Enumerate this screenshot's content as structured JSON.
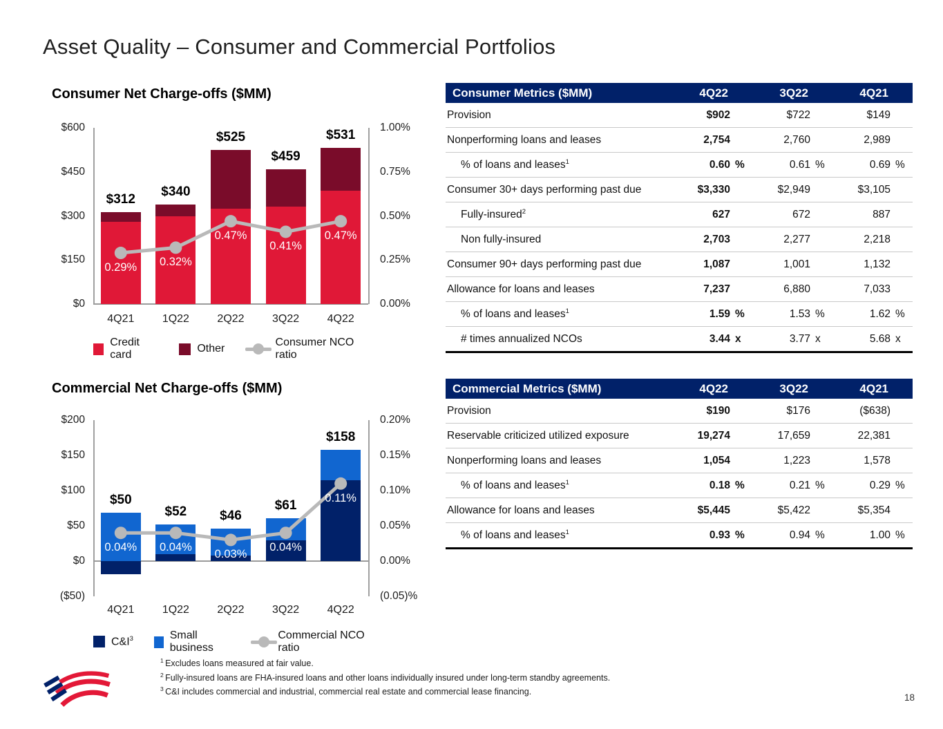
{
  "page": {
    "title": "Asset Quality – Consumer and Commercial Portfolios",
    "page_number": "18"
  },
  "chart_data": [
    {
      "id": "consumer",
      "type": "stacked-bar+line",
      "title": "Consumer Net Charge-offs ($MM)",
      "categories": [
        "4Q21",
        "1Q22",
        "2Q22",
        "3Q22",
        "4Q22"
      ],
      "series": [
        {
          "name": "Credit card",
          "color": "#e01837",
          "values": [
            281,
            300,
            324,
            331,
            387
          ]
        },
        {
          "name": "Other",
          "color": "#7a0c2a",
          "values": [
            31,
            40,
            201,
            128,
            144
          ]
        }
      ],
      "total_labels": [
        "$312",
        "$340",
        "$525",
        "$459",
        "$531"
      ],
      "line": {
        "name": "Consumer NCO ratio",
        "color": "#b9b9b9",
        "values": [
          0.29,
          0.32,
          0.47,
          0.41,
          0.47
        ],
        "labels": [
          "0.29%",
          "0.32%",
          "0.47%",
          "0.41%",
          "0.47%"
        ]
      },
      "left_axis": {
        "min": 0,
        "max": 600,
        "ticks": [
          "$600",
          "$450",
          "$300",
          "$150",
          "$0"
        ]
      },
      "right_axis": {
        "min": 0,
        "max": 1.0,
        "ticks": [
          "1.00%",
          "0.75%",
          "0.50%",
          "0.25%",
          "0.00%"
        ]
      },
      "legend": [
        {
          "type": "swatch",
          "color": "#e01837",
          "label": "Credit card"
        },
        {
          "type": "swatch",
          "color": "#7a0c2a",
          "label": "Other"
        },
        {
          "type": "line",
          "label": "Consumer NCO ratio"
        }
      ]
    },
    {
      "id": "commercial",
      "type": "stacked-bar+line",
      "title": "Commercial Net Charge-offs ($MM)",
      "categories": [
        "4Q21",
        "1Q22",
        "2Q22",
        "3Q22",
        "4Q22"
      ],
      "series": [
        {
          "name": "C&I",
          "color": "#012169",
          "values": [
            -19,
            10,
            8,
            29,
            115
          ]
        },
        {
          "name": "Small business",
          "color": "#1166d0",
          "values": [
            69,
            42,
            38,
            32,
            43
          ]
        }
      ],
      "total_labels": [
        "$50",
        "$52",
        "$46",
        "$61",
        "$158"
      ],
      "line": {
        "name": "Commercial NCO ratio",
        "color": "#b9b9b9",
        "values": [
          0.04,
          0.04,
          0.03,
          0.04,
          0.11
        ],
        "labels": [
          "0.04%",
          "0.04%",
          "0.03%",
          "0.04%",
          "0.11%"
        ]
      },
      "left_axis": {
        "min": -50,
        "max": 200,
        "ticks": [
          "$200",
          "$150",
          "$100",
          "$50",
          "$0",
          "($50)"
        ]
      },
      "right_axis": {
        "min": -0.05,
        "max": 0.2,
        "ticks": [
          "0.20%",
          "0.15%",
          "0.10%",
          "0.05%",
          "0.00%",
          "(0.05)%"
        ]
      },
      "legend": [
        {
          "type": "swatch",
          "color": "#012169",
          "label": "C&I",
          "sup": "3"
        },
        {
          "type": "swatch",
          "color": "#1166d0",
          "label": "Small business"
        },
        {
          "type": "line",
          "label": "Commercial NCO ratio"
        }
      ]
    }
  ],
  "consumer_table": {
    "header": {
      "title": "Consumer Metrics ($MM)",
      "cols": [
        "4Q22",
        "3Q22",
        "4Q21"
      ]
    },
    "rows": [
      {
        "label": "Provision",
        "indent": 0,
        "values": [
          "$902",
          "$722",
          "$149"
        ],
        "units": [
          "",
          "",
          ""
        ]
      },
      {
        "label": "Nonperforming loans and leases",
        "indent": 0,
        "values": [
          "2,754",
          "2,760",
          "2,989"
        ],
        "units": [
          "",
          "",
          ""
        ]
      },
      {
        "label": "% of loans and leases",
        "sup": "1",
        "indent": 1,
        "values": [
          "0.60",
          "0.61",
          "0.69"
        ],
        "units": [
          "%",
          "%",
          "%"
        ]
      },
      {
        "label": "Consumer 30+ days performing past due",
        "indent": 0,
        "values": [
          "$3,330",
          "$2,949",
          "$3,105"
        ],
        "units": [
          "",
          "",
          ""
        ]
      },
      {
        "label": "Fully-insured",
        "sup": "2",
        "indent": 1,
        "values": [
          "627",
          "672",
          "887"
        ],
        "units": [
          "",
          "",
          ""
        ]
      },
      {
        "label": "Non fully-insured",
        "indent": 1,
        "values": [
          "2,703",
          "2,277",
          "2,218"
        ],
        "units": [
          "",
          "",
          ""
        ]
      },
      {
        "label": "Consumer 90+ days performing past due",
        "indent": 0,
        "values": [
          "1,087",
          "1,001",
          "1,132"
        ],
        "units": [
          "",
          "",
          ""
        ]
      },
      {
        "label": "Allowance for loans and leases",
        "indent": 0,
        "values": [
          "7,237",
          "6,880",
          "7,033"
        ],
        "units": [
          "",
          "",
          ""
        ]
      },
      {
        "label": "% of loans and leases",
        "sup": "1",
        "indent": 1,
        "values": [
          "1.59",
          "1.53",
          "1.62"
        ],
        "units": [
          "%",
          "%",
          "%"
        ]
      },
      {
        "label": "# times annualized NCOs",
        "indent": 1,
        "values": [
          "3.44",
          "3.77",
          "5.68"
        ],
        "units": [
          "x",
          "x",
          "x"
        ]
      }
    ]
  },
  "commercial_table": {
    "header": {
      "title": "Commercial Metrics ($MM)",
      "cols": [
        "4Q22",
        "3Q22",
        "4Q21"
      ]
    },
    "rows": [
      {
        "label": "Provision",
        "indent": 0,
        "values": [
          "$190",
          "$176",
          "($638)"
        ],
        "units": [
          "",
          "",
          ""
        ]
      },
      {
        "label": "Reservable criticized utilized exposure",
        "indent": 0,
        "values": [
          "19,274",
          "17,659",
          "22,381"
        ],
        "units": [
          "",
          "",
          ""
        ]
      },
      {
        "label": "Nonperforming loans and leases",
        "indent": 0,
        "values": [
          "1,054",
          "1,223",
          "1,578"
        ],
        "units": [
          "",
          "",
          ""
        ]
      },
      {
        "label": "% of loans and leases",
        "sup": "1",
        "indent": 1,
        "values": [
          "0.18",
          "0.21",
          "0.29"
        ],
        "units": [
          "%",
          "%",
          "%"
        ]
      },
      {
        "label": "Allowance for loans and leases",
        "indent": 0,
        "values": [
          "$5,445",
          "$5,422",
          "$5,354"
        ],
        "units": [
          "",
          "",
          ""
        ]
      },
      {
        "label": "% of loans and leases",
        "sup": "1",
        "indent": 1,
        "values": [
          "0.93",
          "0.94",
          "1.00"
        ],
        "units": [
          "%",
          "%",
          "%"
        ]
      }
    ]
  },
  "footnotes": [
    {
      "sup": "1",
      "text": "Excludes loans measured at fair value."
    },
    {
      "sup": "2",
      "text": "Fully-insured loans are FHA-insured loans and other loans individually insured under long-term standby agreements."
    },
    {
      "sup": "3",
      "text": "C&I includes commercial and industrial, commercial real estate and commercial lease financing."
    }
  ],
  "colors": {
    "header_navy": "#012169",
    "credit_card_red": "#e01837",
    "other_maroon": "#7a0c2a",
    "ci_navy": "#012169",
    "small_business_blue": "#1166d0",
    "nco_line_gray": "#b9b9b9"
  }
}
